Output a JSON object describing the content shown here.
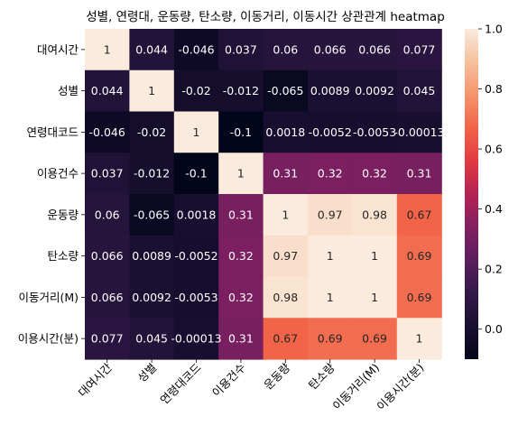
{
  "chart_data": {
    "type": "heatmap",
    "title": "성별, 연령대, 운동량, 탄소량, 이동거리, 이동시간 상관관계 heatmap",
    "labels": [
      "대여시간",
      "성별",
      "연령대코드",
      "이용건수",
      "운동량",
      "탄소량",
      "이동거리(M)",
      "이용시간(분)"
    ],
    "values": [
      [
        1,
        0.044,
        -0.046,
        0.037,
        0.06,
        0.066,
        0.066,
        0.077
      ],
      [
        0.044,
        1,
        -0.02,
        -0.012,
        -0.065,
        0.0089,
        0.0092,
        0.045
      ],
      [
        -0.046,
        -0.02,
        1,
        -0.1,
        0.0018,
        -0.0052,
        -0.0053,
        -0.00013
      ],
      [
        0.037,
        -0.012,
        -0.1,
        1,
        0.31,
        0.32,
        0.32,
        0.31
      ],
      [
        0.06,
        -0.065,
        0.0018,
        0.31,
        1,
        0.97,
        0.98,
        0.67
      ],
      [
        0.066,
        0.0089,
        -0.0052,
        0.32,
        0.97,
        1,
        1,
        0.69
      ],
      [
        0.066,
        0.0092,
        -0.0053,
        0.32,
        0.98,
        1,
        1,
        0.69
      ],
      [
        0.077,
        0.045,
        -0.00013,
        0.31,
        0.67,
        0.69,
        0.69,
        1
      ]
    ],
    "display_values": [
      [
        "1",
        "0.044",
        "-0.046",
        "0.037",
        "0.06",
        "0.066",
        "0.066",
        "0.077"
      ],
      [
        "0.044",
        "1",
        "-0.02",
        "-0.012",
        "-0.065",
        "0.0089",
        "0.0092",
        "0.045"
      ],
      [
        "-0.046",
        "-0.02",
        "1",
        "-0.1",
        "0.0018",
        "-0.0052",
        "-0.0053",
        "-0.00013"
      ],
      [
        "0.037",
        "-0.012",
        "-0.1",
        "1",
        "0.31",
        "0.32",
        "0.32",
        "0.31"
      ],
      [
        "0.06",
        "-0.065",
        "0.0018",
        "0.31",
        "1",
        "0.97",
        "0.98",
        "0.67"
      ],
      [
        "0.066",
        "0.0089",
        "-0.0052",
        "0.32",
        "0.97",
        "1",
        "1",
        "0.69"
      ],
      [
        "0.066",
        "0.0092",
        "-0.0053",
        "0.32",
        "0.98",
        "1",
        "1",
        "0.69"
      ],
      [
        "0.077",
        "0.045",
        "-0.00013",
        "0.31",
        "0.67",
        "0.69",
        "0.69",
        "1"
      ]
    ],
    "color_range": [
      -0.1,
      1.0
    ],
    "colormap": "rocket",
    "colorbar_ticks": [
      0.0,
      0.2,
      0.4,
      0.6,
      0.8,
      1.0
    ],
    "colorbar_tick_labels": [
      "0.0",
      "0.2",
      "0.4",
      "0.6",
      "0.8",
      "1.0"
    ]
  }
}
